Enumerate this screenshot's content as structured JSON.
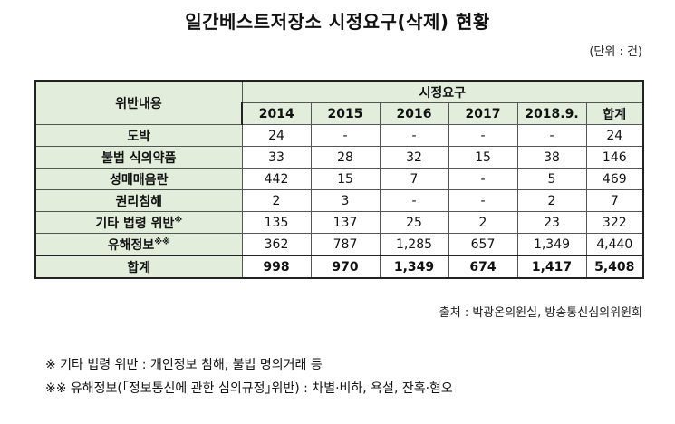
{
  "title": "일간베스트저장소 시정요구(삭제) 현황",
  "unit": "(단위 : 건)",
  "table": {
    "col_header_label": "위반내용",
    "group_header": "시정요구",
    "years": [
      "2014",
      "2015",
      "2016",
      "2017",
      "2018.9.",
      "합계"
    ],
    "rows": [
      {
        "label": "도박",
        "mark": "",
        "values": [
          "24",
          "-",
          "-",
          "-",
          "-",
          "24"
        ]
      },
      {
        "label": "불법 식의약품",
        "mark": "",
        "values": [
          "33",
          "28",
          "32",
          "15",
          "38",
          "146"
        ]
      },
      {
        "label": "성매매음란",
        "mark": "",
        "values": [
          "442",
          "15",
          "7",
          "-",
          "5",
          "469"
        ]
      },
      {
        "label": "권리침해",
        "mark": "",
        "values": [
          "2",
          "3",
          "-",
          "-",
          "2",
          "7"
        ]
      },
      {
        "label": "기타 법령 위반",
        "mark": "※",
        "values": [
          "135",
          "137",
          "25",
          "2",
          "23",
          "322"
        ]
      },
      {
        "label": "유해정보",
        "mark": "※※",
        "values": [
          "362",
          "787",
          "1,285",
          "657",
          "1,349",
          "4,440"
        ]
      }
    ],
    "total": {
      "label": "합계",
      "values": [
        "998",
        "970",
        "1,349",
        "674",
        "1,417",
        "5,408"
      ]
    }
  },
  "source": "출처 : 박광온의원실, 방송통신심의위원회",
  "notes": [
    "※  기타 법령 위반 : 개인정보 침해, 불법 명의거래 등",
    "※※  유해정보(｢정보통신에 관한 심의규정｣위반) : 차별·비하, 욕설, 잔혹·혐오"
  ]
}
